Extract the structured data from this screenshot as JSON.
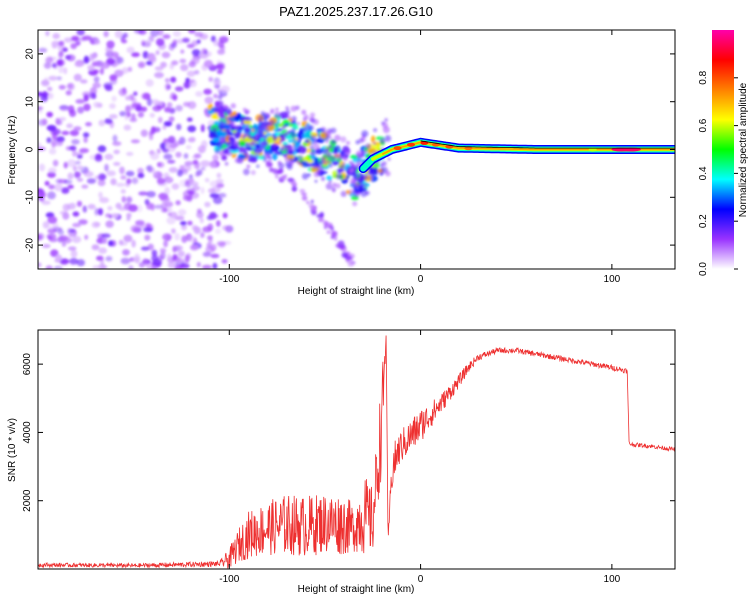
{
  "title": "PAZ1.2025.237.17.26.G10",
  "chart_data": [
    {
      "type": "heatmap",
      "xlabel": "Height of straight line (km)",
      "ylabel": "Frequency (Hz)",
      "xlim": [
        -200,
        133
      ],
      "ylim": [
        -25,
        25
      ],
      "xticks": [
        -100,
        0,
        100
      ],
      "yticks": [
        -20,
        -10,
        0,
        10,
        20
      ],
      "colorbar": {
        "label": "Normalized spectral amplitude",
        "range": [
          0,
          1
        ],
        "ticks": [
          "0.0",
          "0.2",
          "0.4",
          "0.6",
          "0.8"
        ],
        "tick_values": [
          0,
          0.2,
          0.4,
          0.6,
          0.8
        ],
        "colors": [
          "#ffffff",
          "#9933ff",
          "#0000ff",
          "#00ffff",
          "#00ff00",
          "#ffff00",
          "#ff8000",
          "#ff0000",
          "#ff00aa"
        ]
      },
      "features": [
        {
          "name": "noise-region",
          "x_range": [
            -200,
            -100
          ],
          "f_range": [
            -25,
            25
          ],
          "amplitude": 0.12
        },
        {
          "name": "main-signal",
          "points": [
            [
              -110,
              5
            ],
            [
              -90,
              2
            ],
            [
              -70,
              3
            ],
            [
              -55,
              0
            ],
            [
              -45,
              -2
            ],
            [
              -35,
              -6
            ],
            [
              -25,
              -2
            ],
            [
              -15,
              0
            ],
            [
              0,
              1.5
            ],
            [
              20,
              0.3
            ],
            [
              60,
              0
            ],
            [
              100,
              0
            ],
            [
              133,
              0
            ]
          ],
          "amplitude_range": [
            0.3,
            0.95
          ]
        },
        {
          "name": "mirror-branch",
          "points": [
            [
              -80,
              -3
            ],
            [
              -60,
              -10
            ],
            [
              -45,
              -18
            ],
            [
              -35,
              -24
            ]
          ],
          "amplitude": 0.1
        }
      ]
    },
    {
      "type": "line",
      "xlabel": "Height of straight line (km)",
      "ylabel": "SNR (10 * v/v)",
      "xlim": [
        -200,
        133
      ],
      "ylim": [
        0,
        7000
      ],
      "xticks": [
        -100,
        0,
        100
      ],
      "yticks": [
        2000,
        4000,
        6000
      ],
      "series": [
        {
          "name": "SNR",
          "color": "#ee3030",
          "x": [
            -200,
            -150,
            -105,
            -100,
            -95,
            -90,
            -80,
            -70,
            -60,
            -50,
            -40,
            -35,
            -30,
            -25,
            -20,
            -18,
            -17,
            -15,
            -12,
            -10,
            -5,
            0,
            5,
            10,
            20,
            25,
            30,
            40,
            50,
            60,
            70,
            80,
            90,
            100,
            108,
            109,
            110,
            120,
            133
          ],
          "y": [
            120,
            100,
            150,
            300,
            700,
            1000,
            1200,
            1300,
            1250,
            1350,
            1300,
            1200,
            1600,
            1400,
            4500,
            6900,
            800,
            2900,
            3400,
            3600,
            3900,
            4200,
            4500,
            4800,
            5500,
            5900,
            6200,
            6400,
            6400,
            6300,
            6200,
            6100,
            6000,
            5900,
            5800,
            3700,
            3650,
            3600,
            3500
          ],
          "noise": [
            60,
            60,
            80,
            300,
            500,
            700,
            800,
            900,
            900,
            900,
            900,
            700,
            1200,
            1000,
            1500,
            0,
            0,
            700,
            500,
            500,
            500,
            500,
            400,
            300,
            200,
            150,
            100,
            80,
            80,
            80,
            80,
            80,
            80,
            80,
            80,
            60,
            60,
            60,
            60
          ]
        }
      ]
    }
  ]
}
